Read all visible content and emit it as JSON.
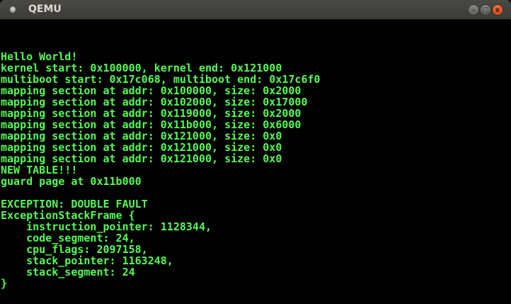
{
  "window": {
    "title": "QEMU",
    "icon": "qemu-app-icon",
    "buttons": {
      "minimize": "–",
      "maximize": "□",
      "close": "x"
    }
  },
  "colors": {
    "console_text": "#54fc54",
    "background": "#000000",
    "close_button": "#e95420"
  },
  "console": {
    "lines": [
      "Hello World!",
      "kernel start: 0x100000, kernel end: 0x121000",
      "multiboot start: 0x17c068, multiboot end: 0x17c6f0",
      "mapping section at addr: 0x100000, size: 0x2000",
      "mapping section at addr: 0x102000, size: 0x17000",
      "mapping section at addr: 0x119000, size: 0x2000",
      "mapping section at addr: 0x11b000, size: 0x6000",
      "mapping section at addr: 0x121000, size: 0x0",
      "mapping section at addr: 0x121000, size: 0x0",
      "mapping section at addr: 0x121000, size: 0x0",
      "NEW TABLE!!!",
      "guard page at 0x11b000",
      "",
      "EXCEPTION: DOUBLE FAULT",
      "ExceptionStackFrame {",
      "    instruction_pointer: 1128344,",
      "    code_segment: 24,",
      "    cpu_flags: 2097158,",
      "    stack_pointer: 1163248,",
      "    stack_segment: 24",
      "}"
    ]
  }
}
